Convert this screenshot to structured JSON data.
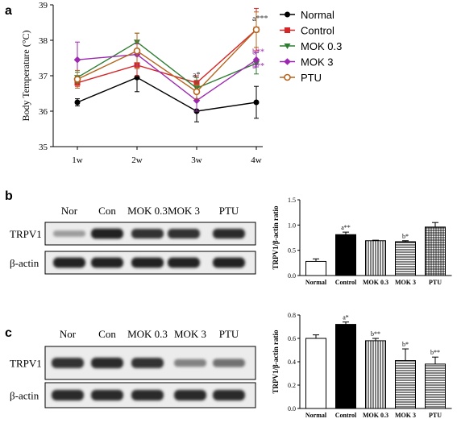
{
  "panels": {
    "a": "a",
    "b": "b",
    "c": "c"
  },
  "blots": [
    {
      "lanes": [
        "Nor",
        "Con",
        "MOK 0.3",
        "MOK 3",
        "PTU"
      ],
      "rows": [
        "TRPV1",
        "β-actin"
      ],
      "intensity": {
        "TRPV1": [
          0.25,
          0.95,
          0.85,
          0.85,
          0.9
        ],
        "β-actin": [
          0.95,
          0.95,
          0.95,
          0.95,
          0.95
        ]
      }
    },
    {
      "lanes": [
        "Nor",
        "Con",
        "MOK 0.3",
        "MOK 3",
        "PTU"
      ],
      "rows": [
        "TRPV1",
        "β-actin"
      ],
      "intensity": {
        "TRPV1": [
          0.85,
          0.9,
          0.85,
          0.4,
          0.5
        ],
        "β-actin": [
          0.9,
          0.9,
          0.9,
          0.9,
          0.9
        ]
      }
    }
  ],
  "chart_data": [
    {
      "type": "line",
      "ylabel": "Body Temperature (°C)",
      "xlabel": "",
      "categories": [
        "1w",
        "2w",
        "3w",
        "4w"
      ],
      "ylim": [
        35,
        39
      ],
      "yticks": [
        35,
        36,
        37,
        38,
        39
      ],
      "legend_position": "right",
      "series": [
        {
          "name": "Normal",
          "color": "#000000",
          "marker": "circle",
          "values": [
            36.25,
            36.95,
            36.0,
            36.25
          ],
          "errors": [
            0.1,
            0.4,
            0.3,
            0.45
          ]
        },
        {
          "name": "Control",
          "color": "#d62728",
          "marker": "square",
          "values": [
            36.8,
            37.3,
            36.8,
            38.3
          ],
          "errors": [
            0.1,
            0.3,
            0.2,
            0.6
          ]
        },
        {
          "name": "MOK 0.3",
          "color": "#2e7d32",
          "marker": "triangle-down",
          "values": [
            36.95,
            37.95,
            36.65,
            37.35
          ],
          "errors": [
            0.15,
            0.25,
            0.3,
            0.3
          ]
        },
        {
          "name": "MOK 3",
          "color": "#9c27b0",
          "marker": "diamond",
          "values": [
            37.45,
            37.6,
            36.3,
            37.45
          ],
          "errors": [
            0.5,
            0.3,
            0.3,
            0.2
          ]
        },
        {
          "name": "PTU",
          "color": "#b5651d",
          "marker": "circle-open",
          "values": [
            36.9,
            37.7,
            36.55,
            38.3
          ],
          "errors": [
            0.25,
            0.5,
            0.2,
            0.5
          ]
        }
      ],
      "annotations": [
        {
          "text": "a***",
          "category": "4w",
          "y": 38.55,
          "color": "#333333"
        },
        {
          "text": "a*",
          "category": "3w",
          "y": 36.95,
          "color": "#333333"
        },
        {
          "text": "b**",
          "category": "4w",
          "y": 37.6,
          "color": "#9c27b0"
        },
        {
          "text": "b**",
          "category": "4w",
          "y": 37.2,
          "color": "#9c27b0"
        }
      ]
    },
    {
      "type": "bar",
      "ylabel": "TRPV1/β-actin ratio",
      "xlabel": "",
      "categories": [
        "Normal",
        "Control",
        "MOK 0.3",
        "MOK 3",
        "PTU"
      ],
      "values": [
        0.28,
        0.81,
        0.69,
        0.67,
        0.96
      ],
      "errors": [
        0.05,
        0.05,
        0.01,
        0.02,
        0.09
      ],
      "patterns": [
        "empty",
        "solid",
        "vertical",
        "horizontal",
        "grid"
      ],
      "ylim": [
        0,
        1.5
      ],
      "yticks": [
        "0.0",
        "0.5",
        "1.0",
        "1.5"
      ],
      "significance": [
        "",
        "a**",
        "",
        "b*",
        ""
      ]
    },
    {
      "type": "bar",
      "ylabel": "TRPV1/β-actin ratio",
      "xlabel": "",
      "categories": [
        "Normal",
        "Control",
        "MOK 0.3",
        "MOK 3",
        "PTU"
      ],
      "values": [
        0.6,
        0.72,
        0.58,
        0.41,
        0.38
      ],
      "errors": [
        0.03,
        0.02,
        0.02,
        0.1,
        0.06
      ],
      "patterns": [
        "empty",
        "solid",
        "vertical",
        "horizontal",
        "horizontal"
      ],
      "ylim": [
        0,
        0.8
      ],
      "yticks": [
        "0.0",
        "0.2",
        "0.4",
        "0.6",
        "0.8"
      ],
      "significance": [
        "",
        "a*",
        "b**",
        "b*",
        "b**"
      ]
    }
  ]
}
